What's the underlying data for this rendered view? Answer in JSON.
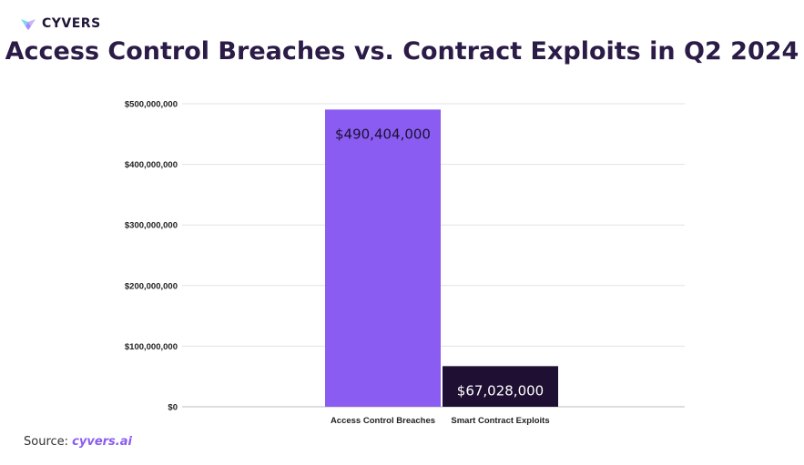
{
  "brand": {
    "name": "CYVERS",
    "icon": "cyvers-logo-icon"
  },
  "chart_data": {
    "type": "bar",
    "title": "Access Control Breaches vs. Contract Exploits in Q2 2024",
    "categories": [
      "Access Control Breaches",
      "Smart Contract Exploits"
    ],
    "values": [
      490404000,
      67028000
    ],
    "data_labels": [
      "$490,404,000",
      "$67,028,000"
    ],
    "ylim": [
      0,
      500000000
    ],
    "y_ticks": [
      0,
      100000000,
      200000000,
      300000000,
      400000000,
      500000000
    ],
    "y_tick_labels": [
      "$0",
      "$100,000,000",
      "$200,000,000",
      "$300,000,000",
      "$400,000,000",
      "$500,000,000"
    ],
    "xlabel": "",
    "ylabel": "",
    "grid": true,
    "colors": [
      "#8b5cf1",
      "#1e0f33"
    ],
    "label_colors": [
      "#1a1033",
      "#ffffff"
    ]
  },
  "source": {
    "prefix": "Source: ",
    "link": "cyvers.ai"
  }
}
